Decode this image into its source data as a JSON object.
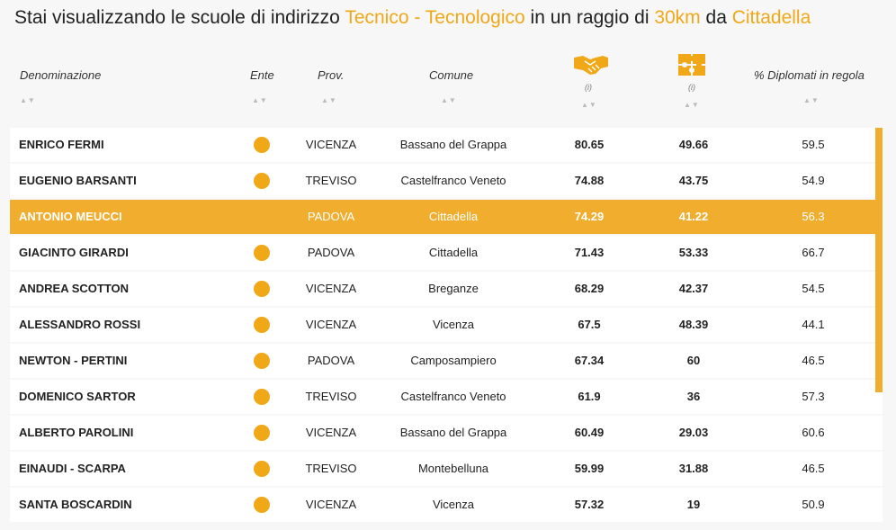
{
  "title": {
    "prefix": "Stai visualizzando le scuole di indirizzo ",
    "indirizzo": "Tecnico - Tecnologico",
    "middle": " in un raggio di ",
    "raggio": "30km",
    "connector": " da ",
    "citta": "Cittadella"
  },
  "headers": {
    "denominazione": "Denominazione",
    "ente": "Ente",
    "prov": "Prov.",
    "comune": "Comune",
    "col1_info": "(i)",
    "col2_info": "(i)",
    "diplomati": "% Diplomati in regola",
    "sort": "▲▼"
  },
  "icons": {
    "col1": "handshake-icon",
    "col2": "puzzle-icon"
  },
  "colors": {
    "accent": "#f0a818",
    "highlight_row": "#f0ad2e"
  },
  "rows": [
    {
      "name": "ENRICO FERMI",
      "prov": "VICENZA",
      "comune": "Bassano del Grappa",
      "v1": "80.65",
      "v2": "49.66",
      "pct": "59.5",
      "dot": true
    },
    {
      "name": "EUGENIO BARSANTI",
      "prov": "TREVISO",
      "comune": "Castelfranco Veneto",
      "v1": "74.88",
      "v2": "43.75",
      "pct": "54.9",
      "dot": true
    },
    {
      "name": "ANTONIO MEUCCI",
      "prov": "PADOVA",
      "comune": "Cittadella",
      "v1": "74.29",
      "v2": "41.22",
      "pct": "56.3",
      "dot": false,
      "active": true
    },
    {
      "name": "GIACINTO GIRARDI",
      "prov": "PADOVA",
      "comune": "Cittadella",
      "v1": "71.43",
      "v2": "53.33",
      "pct": "66.7",
      "dot": true
    },
    {
      "name": "ANDREA SCOTTON",
      "prov": "VICENZA",
      "comune": "Breganze",
      "v1": "68.29",
      "v2": "42.37",
      "pct": "54.5",
      "dot": true
    },
    {
      "name": "ALESSANDRO ROSSI",
      "prov": "VICENZA",
      "comune": "Vicenza",
      "v1": "67.5",
      "v2": "48.39",
      "pct": "44.1",
      "dot": true
    },
    {
      "name": "NEWTON - PERTINI",
      "prov": "PADOVA",
      "comune": "Camposampiero",
      "v1": "67.34",
      "v2": "60",
      "pct": "46.5",
      "dot": true
    },
    {
      "name": "DOMENICO SARTOR",
      "prov": "TREVISO",
      "comune": "Castelfranco Veneto",
      "v1": "61.9",
      "v2": "36",
      "pct": "57.3",
      "dot": true
    },
    {
      "name": "ALBERTO PAROLINI",
      "prov": "VICENZA",
      "comune": "Bassano del Grappa",
      "v1": "60.49",
      "v2": "29.03",
      "pct": "60.6",
      "dot": true
    },
    {
      "name": "EINAUDI - SCARPA",
      "prov": "TREVISO",
      "comune": "Montebelluna",
      "v1": "59.99",
      "v2": "31.88",
      "pct": "46.5",
      "dot": true
    },
    {
      "name": "SANTA BOSCARDIN",
      "prov": "VICENZA",
      "comune": "Vicenza",
      "v1": "57.32",
      "v2": "19",
      "pct": "50.9",
      "dot": true
    }
  ]
}
